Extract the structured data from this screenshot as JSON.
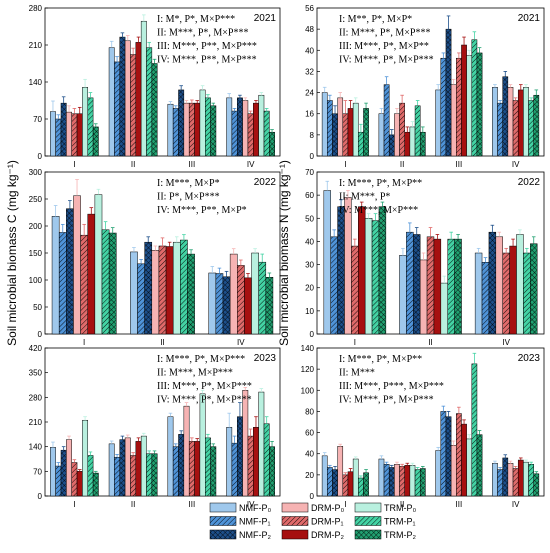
{
  "figure": {
    "ylabel_left": "Soil microbial biomass C (mg kg⁻¹)",
    "ylabel_right": "Soil microbial biomass N (mg kg⁻¹)"
  },
  "legend": {
    "entries": [
      {
        "label": "NMF-P₀",
        "color": "#9fc8ec",
        "pattern": "none"
      },
      {
        "label": "DRM-P₀",
        "color": "#f6b3b3",
        "pattern": "none"
      },
      {
        "label": "TRM-P₀",
        "color": "#b9f0df",
        "pattern": "none"
      },
      {
        "label": "NMF-P₁",
        "color": "#4f93d8",
        "pattern": "hatch"
      },
      {
        "label": "DRM-P₁",
        "color": "#e06a6a",
        "pattern": "hatch"
      },
      {
        "label": "TRM-P₁",
        "color": "#43d3a4",
        "pattern": "hatch"
      },
      {
        "label": "NMF-P₂",
        "color": "#1d4f8a",
        "pattern": "cross"
      },
      {
        "label": "DRM-P₂",
        "color": "#a61010",
        "pattern": "none"
      },
      {
        "label": "TRM-P₂",
        "color": "#20a070",
        "pattern": "cross"
      }
    ]
  },
  "chart_data": [
    {
      "type": "bar",
      "panel": "C-2021",
      "year_label": "2021",
      "categories": [
        "I",
        "II",
        "III",
        "IV"
      ],
      "ylim": [
        0,
        280
      ],
      "yticks": [
        0,
        70,
        140,
        210,
        280
      ],
      "annotations": [
        "I: M*, P*, M×P***",
        "II: M***, P*, M×P***",
        "III: M***, P**, M×P***",
        "IV: M***, P**, M×P***"
      ],
      "values": [
        [
          84,
          83,
          130,
          70,
          80,
          110,
          100,
          80,
          55
        ],
        [
          205,
          218,
          255,
          178,
          192,
          205,
          225,
          215,
          175
        ],
        [
          98,
          100,
          125,
          90,
          100,
          110,
          125,
          100,
          95
        ],
        [
          110,
          105,
          115,
          85,
          80,
          85,
          110,
          100,
          45
        ]
      ],
      "errors": [
        [
          20,
          12,
          15,
          8,
          10,
          10,
          12,
          12,
          6
        ],
        [
          12,
          10,
          12,
          10,
          12,
          10,
          8,
          10,
          8
        ],
        [
          5,
          5,
          8,
          5,
          6,
          6,
          8,
          5,
          5
        ],
        [
          8,
          5,
          5,
          5,
          5,
          5,
          5,
          5,
          5
        ]
      ]
    },
    {
      "type": "bar",
      "panel": "N-2021",
      "year_label": "2021",
      "categories": [
        "I",
        "II",
        "III",
        "IV"
      ],
      "ylim": [
        0,
        56
      ],
      "yticks": [
        0,
        8,
        16,
        24,
        32,
        40,
        48,
        56
      ],
      "annotations": [
        "I: M**, P*, M×P*",
        "II: M***, P*, M×P***",
        "III: M***, P*, M×P**",
        "IV: M***, P*, M×P***"
      ],
      "values": [
        [
          24,
          22,
          20,
          21,
          16,
          9,
          16,
          18,
          18
        ],
        [
          16,
          16,
          11,
          27,
          20,
          19,
          8,
          9,
          9
        ],
        [
          25,
          27,
          38,
          37,
          37,
          44,
          48,
          42,
          39
        ],
        [
          26,
          26,
          26,
          20,
          21,
          21,
          30,
          25,
          23
        ]
      ],
      "errors": [
        [
          2,
          2,
          2,
          2,
          5,
          3,
          3,
          3,
          2
        ],
        [
          2,
          2,
          2,
          3,
          3,
          2,
          2,
          2,
          2
        ],
        [
          2,
          2,
          2,
          2,
          2,
          3,
          5,
          3,
          2
        ],
        [
          1,
          1,
          1,
          1,
          1,
          1,
          2,
          2,
          2
        ]
      ]
    },
    {
      "type": "bar",
      "panel": "C-2022",
      "year_label": "2022",
      "categories": [
        "I",
        "II",
        "IV"
      ],
      "ylim": [
        0,
        300
      ],
      "yticks": [
        0,
        50,
        100,
        150,
        200,
        250,
        300
      ],
      "annotations": [
        "I: M***, M×P*",
        "II: P*, M×P***",
        "IV: M***, P**, M×P*"
      ],
      "values": [
        [
          218,
          256,
          258,
          188,
          183,
          193,
          232,
          222,
          187
        ],
        [
          152,
          155,
          170,
          130,
          163,
          174,
          170,
          162,
          148
        ],
        [
          113,
          148,
          150,
          112,
          127,
          133,
          106,
          104,
          105
        ]
      ],
      "errors": [
        [
          20,
          30,
          10,
          15,
          20,
          15,
          15,
          12,
          10
        ],
        [
          8,
          8,
          10,
          8,
          15,
          10,
          10,
          8,
          8
        ],
        [
          12,
          10,
          8,
          10,
          10,
          15,
          10,
          8,
          8
        ]
      ]
    },
    {
      "type": "bar",
      "panel": "N-2022",
      "year_label": "2022",
      "categories": [
        "I",
        "II",
        "IV"
      ],
      "ylim": [
        0,
        70
      ],
      "yticks": [
        0,
        10,
        20,
        30,
        40,
        50,
        60,
        70
      ],
      "annotations": [
        "I: M***, P*, M×P**",
        "II: M***, P*",
        "IV: M***, M×P***"
      ],
      "values": [
        [
          62,
          59,
          50,
          42,
          38,
          49,
          55,
          55,
          55
        ],
        [
          34,
          32,
          22,
          44,
          42,
          41,
          43,
          41,
          41
        ],
        [
          35,
          42,
          43,
          31,
          35,
          35,
          44,
          38,
          39
        ]
      ],
      "errors": [
        [
          4,
          3,
          2,
          3,
          3,
          3,
          3,
          2,
          2
        ],
        [
          3,
          3,
          3,
          4,
          4,
          3,
          3,
          2,
          2
        ],
        [
          2,
          2,
          2,
          2,
          2,
          2,
          3,
          3,
          3
        ]
      ]
    },
    {
      "type": "bar",
      "panel": "C-2023",
      "year_label": "2023",
      "categories": [
        "I",
        "II",
        "III",
        "IV"
      ],
      "ylim": [
        0,
        420
      ],
      "yticks": [
        0,
        70,
        140,
        210,
        280,
        350,
        420
      ],
      "annotations": [
        "I: M***, P*, M×P***",
        "II: M***, M×P***",
        "III: M***, P*, M×P***",
        "IV: M***, P*, M×P***"
      ],
      "values": [
        [
          138,
          160,
          215,
          85,
          95,
          115,
          130,
          70,
          65
        ],
        [
          148,
          165,
          170,
          110,
          115,
          120,
          160,
          155,
          120
        ],
        [
          225,
          255,
          290,
          140,
          155,
          165,
          175,
          155,
          140
        ],
        [
          195,
          300,
          295,
          150,
          170,
          205,
          225,
          195,
          140
        ]
      ],
      "errors": [
        [
          15,
          10,
          10,
          10,
          8,
          10,
          10,
          5,
          5
        ],
        [
          8,
          8,
          8,
          8,
          8,
          8,
          10,
          10,
          8
        ],
        [
          10,
          10,
          10,
          8,
          10,
          10,
          10,
          8,
          8
        ],
        [
          40,
          8,
          10,
          20,
          20,
          20,
          40,
          30,
          15
        ]
      ]
    },
    {
      "type": "bar",
      "panel": "N-2023",
      "year_label": "2023",
      "categories": [
        "I",
        "II",
        "III",
        "IV"
      ],
      "ylim": [
        0,
        140
      ],
      "yticks": [
        0,
        20,
        40,
        60,
        80,
        100,
        120,
        140
      ],
      "annotations": [
        "I: M***, P*, M×P**",
        "II: M***",
        "III: M***, P***, M×P***",
        "IV: M***, P*, M×P***"
      ],
      "values": [
        [
          38,
          47,
          35,
          27,
          20,
          17,
          25,
          23,
          22
        ],
        [
          35,
          30,
          29,
          30,
          28,
          25,
          27,
          29,
          26
        ],
        [
          43,
          48,
          54,
          80,
          78,
          125,
          75,
          68,
          58
        ],
        [
          31,
          31,
          32,
          25,
          26,
          30,
          36,
          34,
          21
        ]
      ],
      "errors": [
        [
          3,
          2,
          2,
          2,
          2,
          2,
          3,
          3,
          3
        ],
        [
          3,
          2,
          2,
          2,
          2,
          2,
          2,
          2,
          2
        ],
        [
          3,
          4,
          4,
          5,
          6,
          10,
          5,
          4,
          4
        ],
        [
          2,
          2,
          2,
          2,
          2,
          2,
          3,
          2,
          2
        ]
      ]
    }
  ]
}
